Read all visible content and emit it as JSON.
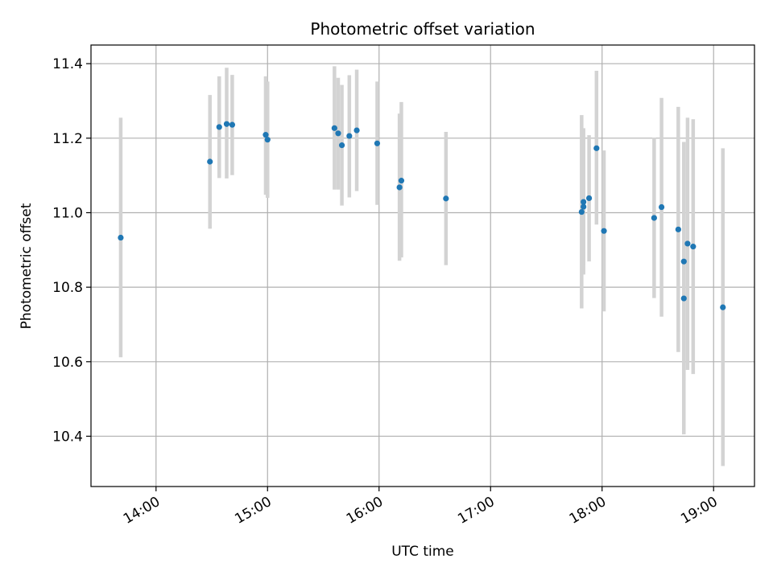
{
  "chart_data": {
    "type": "scatter",
    "title": "Photometric offset variation",
    "xlabel": "UTC time",
    "ylabel": "Photometric offset",
    "xlim": [
      "13:25",
      "19:22"
    ],
    "ylim": [
      10.265,
      11.45
    ],
    "xticks": [
      "14:00",
      "15:00",
      "16:00",
      "17:00",
      "18:00",
      "19:00"
    ],
    "yticks": [
      10.4,
      10.6,
      10.8,
      11.0,
      11.2,
      11.4
    ],
    "ytick_labels": [
      "10.4",
      "10.6",
      "10.8",
      "11.0",
      "11.2",
      "11.4"
    ],
    "grid": true,
    "colors": {
      "point": "#1f77b4",
      "errorbar": "#d3d3d3",
      "grid": "#b0b0b0"
    },
    "points": [
      {
        "t": "13:41",
        "y": 10.933,
        "ylo": 10.612,
        "yhi": 11.255
      },
      {
        "t": "14:29",
        "y": 11.137,
        "ylo": 10.957,
        "yhi": 11.316
      },
      {
        "t": "14:34",
        "y": 11.23,
        "ylo": 11.093,
        "yhi": 11.366
      },
      {
        "t": "14:38",
        "y": 11.238,
        "ylo": 11.092,
        "yhi": 11.389
      },
      {
        "t": "14:41",
        "y": 11.236,
        "ylo": 11.101,
        "yhi": 11.37
      },
      {
        "t": "14:59",
        "y": 11.209,
        "ylo": 11.048,
        "yhi": 11.366
      },
      {
        "t": "15:00",
        "y": 11.196,
        "ylo": 11.04,
        "yhi": 11.352
      },
      {
        "t": "15:36",
        "y": 11.227,
        "ylo": 11.062,
        "yhi": 11.393
      },
      {
        "t": "15:38",
        "y": 11.213,
        "ylo": 11.062,
        "yhi": 11.362
      },
      {
        "t": "15:40",
        "y": 11.181,
        "ylo": 11.019,
        "yhi": 11.343
      },
      {
        "t": "15:44",
        "y": 11.206,
        "ylo": 11.041,
        "yhi": 11.369
      },
      {
        "t": "15:48",
        "y": 11.221,
        "ylo": 11.058,
        "yhi": 11.384
      },
      {
        "t": "15:59",
        "y": 11.186,
        "ylo": 11.021,
        "yhi": 11.352
      },
      {
        "t": "16:11",
        "y": 11.068,
        "ylo": 10.871,
        "yhi": 11.266
      },
      {
        "t": "16:12",
        "y": 11.086,
        "ylo": 10.88,
        "yhi": 11.297
      },
      {
        "t": "16:36",
        "y": 11.038,
        "ylo": 10.859,
        "yhi": 11.217
      },
      {
        "t": "17:49",
        "y": 11.002,
        "ylo": 10.743,
        "yhi": 11.262
      },
      {
        "t": "17:50",
        "y": 11.016,
        "ylo": 10.834,
        "yhi": 11.227
      },
      {
        "t": "17:50",
        "y": 11.029,
        "ylo": 10.861,
        "yhi": 11.197
      },
      {
        "t": "17:53",
        "y": 11.039,
        "ylo": 10.869,
        "yhi": 11.208
      },
      {
        "t": "17:57",
        "y": 11.173,
        "ylo": 10.968,
        "yhi": 11.381
      },
      {
        "t": "18:01",
        "y": 10.951,
        "ylo": 10.735,
        "yhi": 11.167
      },
      {
        "t": "18:28",
        "y": 10.986,
        "ylo": 10.771,
        "yhi": 11.201
      },
      {
        "t": "18:32",
        "y": 11.015,
        "ylo": 10.721,
        "yhi": 11.308
      },
      {
        "t": "18:41",
        "y": 10.955,
        "ylo": 10.626,
        "yhi": 11.284
      },
      {
        "t": "18:44",
        "y": 10.869,
        "ylo": 10.549,
        "yhi": 11.19
      },
      {
        "t": "18:44",
        "y": 10.77,
        "ylo": 10.405,
        "yhi": 11.135
      },
      {
        "t": "18:46",
        "y": 10.917,
        "ylo": 10.578,
        "yhi": 11.255
      },
      {
        "t": "18:49",
        "y": 10.909,
        "ylo": 10.567,
        "yhi": 11.251
      },
      {
        "t": "19:05",
        "y": 10.746,
        "ylo": 10.32,
        "yhi": 11.173
      }
    ]
  }
}
